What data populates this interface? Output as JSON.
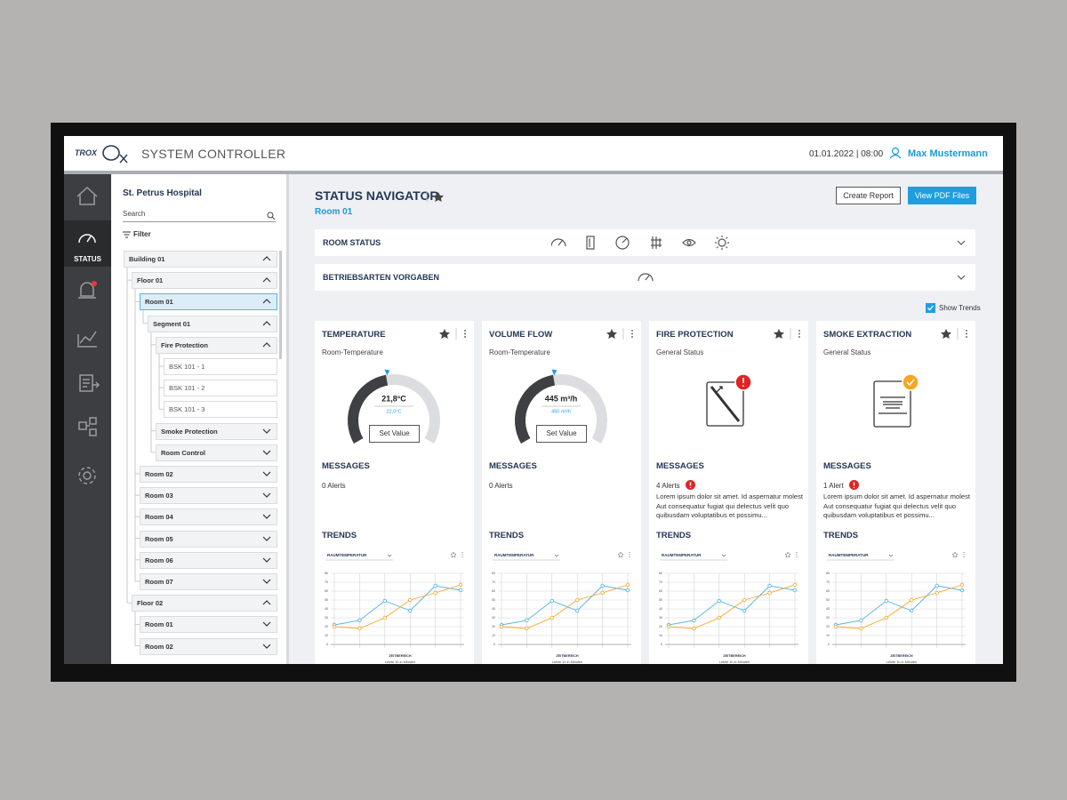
{
  "header": {
    "brand": "TROX",
    "title": "SYSTEM CONTROLLER",
    "datetime": "01.01.2022 | 08:00",
    "user": "Max Mustermann"
  },
  "sidebar": {
    "active_label": "STATUS"
  },
  "tree": {
    "title": "St. Petrus Hospital",
    "search_placeholder": "Search",
    "filter": "Filter",
    "nodes": [
      {
        "label": "Building 01",
        "children": [
          {
            "label": "Floor 01",
            "children": [
              {
                "label": "Room 01",
                "selected": true,
                "children": [
                  {
                    "label": "Segment 01",
                    "children": [
                      {
                        "label": "Fire Protection",
                        "children": [
                          {
                            "label": "BSK 101 - 1"
                          },
                          {
                            "label": "BSK 101 - 2"
                          },
                          {
                            "label": "BSK 101 - 3"
                          }
                        ]
                      },
                      {
                        "label": "Smoke Protection",
                        "expanded": false
                      },
                      {
                        "label": "Room Control",
                        "expanded": false
                      }
                    ]
                  }
                ]
              },
              {
                "label": "Room 02",
                "expanded": false
              },
              {
                "label": "Room 03",
                "expanded": false
              },
              {
                "label": "Room 04",
                "expanded": false
              },
              {
                "label": "Room 05",
                "expanded": false
              },
              {
                "label": "Room 06",
                "expanded": false
              },
              {
                "label": "Room 07",
                "expanded": false
              }
            ]
          },
          {
            "label": "Floor 02",
            "children": [
              {
                "label": "Room 01",
                "expanded": false
              },
              {
                "label": "Room 02",
                "expanded": false
              }
            ]
          }
        ]
      }
    ]
  },
  "main": {
    "title": "STATUS NAVIGATOR",
    "subtitle": "Room 01",
    "buttons": [
      "Create Report",
      "View PDF Files"
    ],
    "sections": [
      "ROOM STATUS",
      "BETRIEBSARTEN VORGABEN"
    ],
    "show_trends": "Show Trends",
    "cards": [
      {
        "title": "TEMPERATURE",
        "subtitle": "Room-Temperature",
        "kind": "gauge",
        "value": "21,8°C",
        "setpoint": "22,0°C",
        "button": "Set Value",
        "messages_title": "MESSAGES",
        "alerts": "0 Alerts",
        "trends_title": "TRENDS",
        "chart": {
          "type": "line",
          "dropdown": "RAUMTEMPERATUR",
          "x_label": "ZEITBEREICH",
          "range": "Letzte 1h in Minuten",
          "ylim": [
            0,
            80
          ],
          "yticks": [
            0,
            10,
            20,
            30,
            40,
            50,
            60,
            70,
            80
          ],
          "series": [
            {
              "color": "#4fb3e0",
              "values": [
                22,
                27,
                49,
                38,
                66,
                61
              ]
            },
            {
              "color": "#f5a623",
              "values": [
                20,
                18,
                30,
                50,
                58,
                67
              ]
            }
          ]
        }
      },
      {
        "title": "VOLUME FLOW",
        "subtitle": "Room-Temperature",
        "kind": "gauge",
        "value": "445 m³/h",
        "setpoint": "450 m³/h",
        "button": "Set Value",
        "messages_title": "MESSAGES",
        "alerts": "0 Alerts",
        "trends_title": "TRENDS",
        "chart": {
          "type": "line",
          "dropdown": "RAUMTEMPERATUR",
          "x_label": "ZEITBEREICH",
          "range": "Letzte 1h in Minuten",
          "ylim": [
            0,
            80
          ],
          "yticks": [
            0,
            10,
            20,
            30,
            40,
            50,
            60,
            70,
            80
          ],
          "series": [
            {
              "color": "#4fb3e0",
              "values": [
                22,
                27,
                49,
                38,
                66,
                61
              ]
            },
            {
              "color": "#f5a623",
              "values": [
                20,
                18,
                30,
                50,
                58,
                67
              ]
            }
          ]
        }
      },
      {
        "title": "FIRE PROTECTION",
        "subtitle": "General Status",
        "kind": "status",
        "icon": "fire",
        "badge": "alert",
        "messages_title": "MESSAGES",
        "alerts": "4 Alerts",
        "alert_flag": true,
        "message": "Lorem ipsum dolor sit amet. Id aspernatur molest Aut consequatur fugiat qui delectus velit quo quibusdam voluptatibus et possimu...",
        "trends_title": "TRENDS",
        "chart": {
          "type": "line",
          "dropdown": "RAUMTEMPERATUR",
          "x_label": "ZEITBEREICH",
          "range": "Letzte 1h in Minuten",
          "ylim": [
            0,
            80
          ],
          "yticks": [
            0,
            10,
            20,
            30,
            40,
            50,
            60,
            70,
            80
          ],
          "series": [
            {
              "color": "#4fb3e0",
              "values": [
                22,
                27,
                49,
                38,
                66,
                61
              ]
            },
            {
              "color": "#f5a623",
              "values": [
                20,
                18,
                30,
                50,
                58,
                67
              ]
            }
          ]
        }
      },
      {
        "title": "SMOKE EXTRACTION",
        "subtitle": "General Status",
        "kind": "status",
        "icon": "smoke",
        "badge": "ok",
        "messages_title": "MESSAGES",
        "alerts": "1 Alert",
        "alert_flag": true,
        "message": "Lorem ipsum dolor sit amet. Id aspernatur molest Aut consequatur fugiat qui delectus velit quo quibusdam voluptatibus et possimu...",
        "trends_title": "TRENDS",
        "chart": {
          "type": "line",
          "dropdown": "RAUMTEMPERATUR",
          "x_label": "ZEITBEREICH",
          "range": "Letzte 1h in Minuten",
          "ylim": [
            0,
            80
          ],
          "yticks": [
            0,
            10,
            20,
            30,
            40,
            50,
            60,
            70,
            80
          ],
          "series": [
            {
              "color": "#4fb3e0",
              "values": [
                22,
                27,
                49,
                38,
                66,
                61
              ]
            },
            {
              "color": "#f5a623",
              "values": [
                20,
                18,
                30,
                50,
                58,
                67
              ]
            }
          ]
        }
      }
    ]
  }
}
